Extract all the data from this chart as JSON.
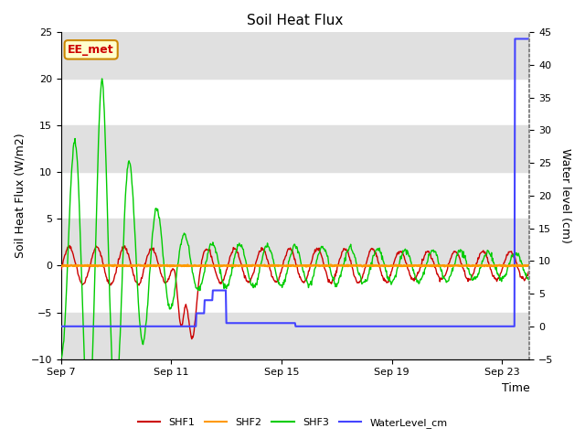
{
  "title": "Soil Heat Flux",
  "ylabel_left": "Soil Heat Flux (W/m2)",
  "ylabel_right": "Water level (cm)",
  "xlabel": "Time",
  "ylim_left": [
    -10,
    25
  ],
  "ylim_right": [
    -5,
    45
  ],
  "annotation_text": "EE_met",
  "annotation_bg": "#ffffcc",
  "annotation_border": "#cc8800",
  "band_color": "#e0e0e0",
  "legend_entries": [
    "SHF1",
    "SHF2",
    "SHF3",
    "WaterLevel_cm"
  ],
  "line_colors": {
    "SHF1": "#cc0000",
    "SHF2": "#ff9900",
    "SHF3": "#00cc00",
    "WaterLevel_cm": "#4444ff"
  },
  "xtick_labels": [
    "Sep 7",
    "Sep 11",
    "Sep 15",
    "Sep 19",
    "Sep 23"
  ],
  "xtick_positions": [
    0,
    4,
    8,
    12,
    16
  ],
  "yticks_left": [
    -10,
    -5,
    0,
    5,
    10,
    15,
    20,
    25
  ],
  "yticks_right": [
    -5,
    0,
    5,
    10,
    15,
    20,
    25,
    30,
    35,
    40,
    45
  ]
}
